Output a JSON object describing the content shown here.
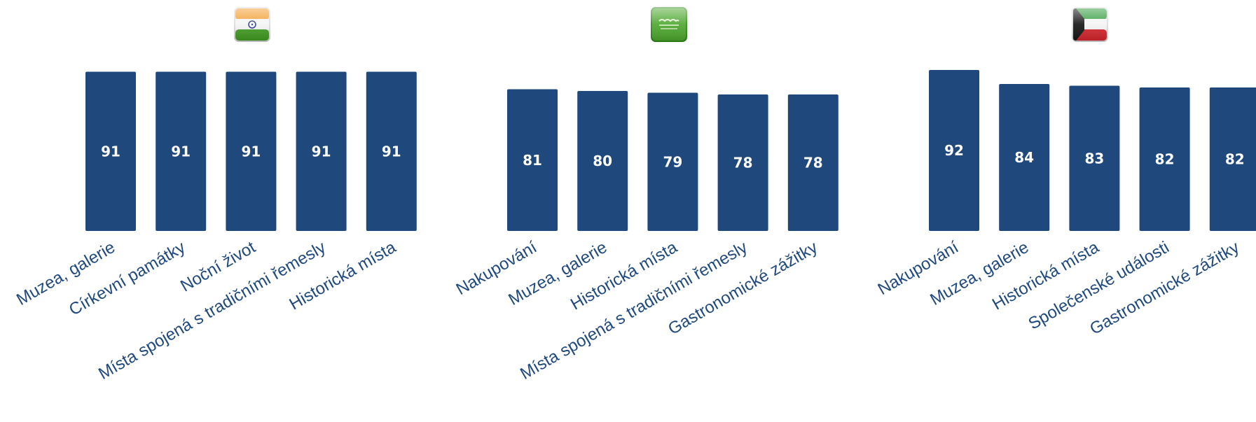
{
  "colors": {
    "bar": "#1f497d",
    "value_label": "#ffffff",
    "category_label": "#1f497d"
  },
  "chart_data": [
    {
      "type": "bar",
      "flag_icon": "india-flag-icon",
      "categories": [
        "Muzea, galerie",
        "Církevní památky",
        "Noční život",
        "Místa spojená s tradičními řemesly",
        "Historická místa"
      ],
      "values": [
        91,
        91,
        91,
        91,
        91
      ],
      "ylim": [
        0,
        100
      ]
    },
    {
      "type": "bar",
      "flag_icon": "saudi-arabia-flag-icon",
      "categories": [
        "Nakupování",
        "Muzea, galerie",
        "Historická místa",
        "Místa spojená s tradičními řemesly",
        "Gastronomické zážitky"
      ],
      "values": [
        81,
        80,
        79,
        78,
        78
      ],
      "ylim": [
        0,
        100
      ]
    },
    {
      "type": "bar",
      "flag_icon": "kuwait-flag-icon",
      "categories": [
        "Nakupování",
        "Muzea, galerie",
        "Historická místa",
        "Společenské události",
        "Gastronomické zážitky"
      ],
      "values": [
        92,
        84,
        83,
        82,
        82
      ],
      "ylim": [
        0,
        100
      ]
    }
  ]
}
